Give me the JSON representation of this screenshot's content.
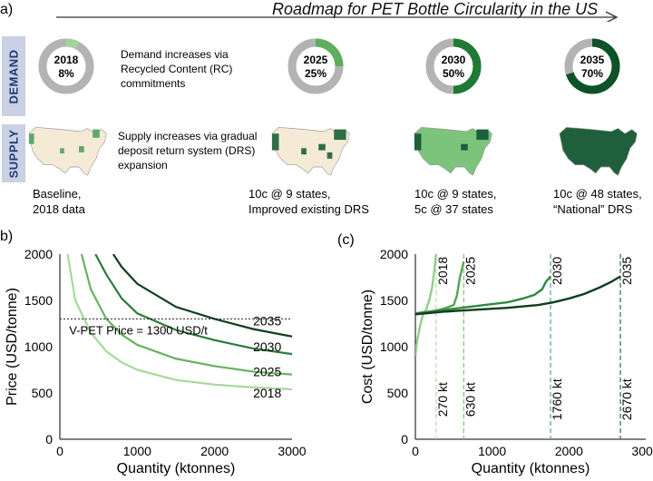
{
  "panel_a": {
    "letter": "a)",
    "title": "Roadmap for PET Bottle Circularity in the US",
    "rows": {
      "demand": "DEMAND",
      "supply": "SUPPLY"
    },
    "demand_text": "Demand increases via Recycled Content (RC) commitments",
    "supply_text": "Supply increases via gradual deposit return system (DRS) expansion",
    "donuts": [
      {
        "year": "2018",
        "pct": "8%",
        "value": 0.08,
        "color": "#a3d39c"
      },
      {
        "year": "2025",
        "pct": "25%",
        "value": 0.25,
        "color": "#5fae5f"
      },
      {
        "year": "2030",
        "pct": "50%",
        "value": 0.5,
        "color": "#1e7a35"
      },
      {
        "year": "2035",
        "pct": "70%",
        "value": 0.7,
        "color": "#0f5128"
      }
    ],
    "captions": [
      {
        "line1": "Baseline,",
        "line2": "2018 data"
      },
      {
        "line1": "10c @ 9 states,",
        "line2": "Improved existing DRS"
      },
      {
        "line1": "10c @ 9 states,",
        "line2": "5c @ 37 states"
      },
      {
        "line1": "10c @ 48 states,",
        "line2": "“National” DRS"
      }
    ],
    "colors": {
      "ring_base": "#b3b3b3",
      "map_base": "#f5ead6",
      "map_light": "#7cc47c",
      "map_dark": "#1f5f3c"
    }
  },
  "chart_data": [
    {
      "type": "line",
      "panel_label": "b)",
      "xlabel": "Quantity (ktonnes)",
      "ylabel": "Price (USD/tonne)",
      "xlim": [
        0,
        3000
      ],
      "ylim": [
        0,
        2000
      ],
      "xticks": [
        "0",
        "1000",
        "2000",
        "3000"
      ],
      "yticks": [
        "0",
        "500",
        "1000",
        "1500",
        "2000"
      ],
      "reference_line": {
        "y": 1300,
        "label": "V-PET Price = 1300 USD/t"
      },
      "series": [
        {
          "name": "2018",
          "color": "#a6d89c",
          "x": [
            100,
            200,
            400,
            600,
            800,
            1000,
            1500,
            2000,
            2500,
            3000
          ],
          "y": [
            2000,
            1500,
            1150,
            950,
            830,
            750,
            640,
            590,
            560,
            540
          ]
        },
        {
          "name": "2025",
          "color": "#67b25f",
          "x": [
            280,
            400,
            600,
            800,
            1000,
            1500,
            2000,
            2500,
            3000
          ],
          "y": [
            2000,
            1620,
            1300,
            1130,
            1020,
            870,
            790,
            730,
            700
          ]
        },
        {
          "name": "2030",
          "color": "#2d7a3a",
          "x": [
            460,
            600,
            800,
            1000,
            1500,
            2000,
            2500,
            3000
          ],
          "y": [
            2000,
            1780,
            1520,
            1360,
            1180,
            1070,
            980,
            920
          ]
        },
        {
          "name": "2035",
          "color": "#133d1f",
          "x": [
            690,
            800,
            1000,
            1500,
            2000,
            2500,
            3000
          ],
          "y": [
            2000,
            1860,
            1680,
            1430,
            1300,
            1190,
            1110
          ]
        }
      ]
    },
    {
      "type": "line",
      "panel_label": "(c)",
      "xlabel": "Quantity (ktonnes)",
      "ylabel": "Cost (USD/tonne)",
      "xlim": [
        0,
        3000
      ],
      "ylim": [
        0,
        2000
      ],
      "xticks": [
        "0",
        "1000",
        "2000",
        "3000"
      ],
      "yticks": [
        "0",
        "500",
        "1000",
        "1500",
        "2000"
      ],
      "series": [
        {
          "name": "2018",
          "color": "#8fcf86",
          "x": [
            0,
            20,
            60,
            100,
            140,
            180,
            220,
            250,
            270
          ],
          "y": [
            900,
            1050,
            1220,
            1350,
            1400,
            1500,
            1650,
            1850,
            2000
          ]
        },
        {
          "name": "2025",
          "color": "#55a456",
          "x": [
            0,
            100,
            200,
            300,
            400,
            500,
            540,
            580,
            610,
            630
          ],
          "y": [
            1360,
            1370,
            1380,
            1395,
            1420,
            1450,
            1550,
            1750,
            1850,
            1920
          ]
        },
        {
          "name": "2030",
          "color": "#2f8a3f",
          "x": [
            0,
            300,
            600,
            900,
            1200,
            1400,
            1550,
            1650,
            1700,
            1760
          ],
          "y": [
            1360,
            1390,
            1420,
            1450,
            1480,
            1520,
            1560,
            1620,
            1700,
            1760
          ]
        },
        {
          "name": "2035",
          "color": "#0f3d1e",
          "x": [
            0,
            400,
            800,
            1200,
            1600,
            1800,
            2000,
            2200,
            2400,
            2550,
            2670
          ],
          "y": [
            1350,
            1380,
            1400,
            1420,
            1450,
            1480,
            1520,
            1570,
            1640,
            1700,
            1760
          ]
        }
      ],
      "markers": [
        {
          "x": 270,
          "label": "270 kt",
          "year": "2018",
          "color": "#b5dcae"
        },
        {
          "x": 630,
          "label": "630 kt",
          "year": "2025",
          "color": "#7fc27a"
        },
        {
          "x": 1760,
          "label": "1760 kt",
          "year": "2030",
          "color": "#4aa3a0"
        },
        {
          "x": 2670,
          "label": "2670 kt",
          "year": "2035",
          "color": "#2c6b3a"
        }
      ]
    }
  ]
}
